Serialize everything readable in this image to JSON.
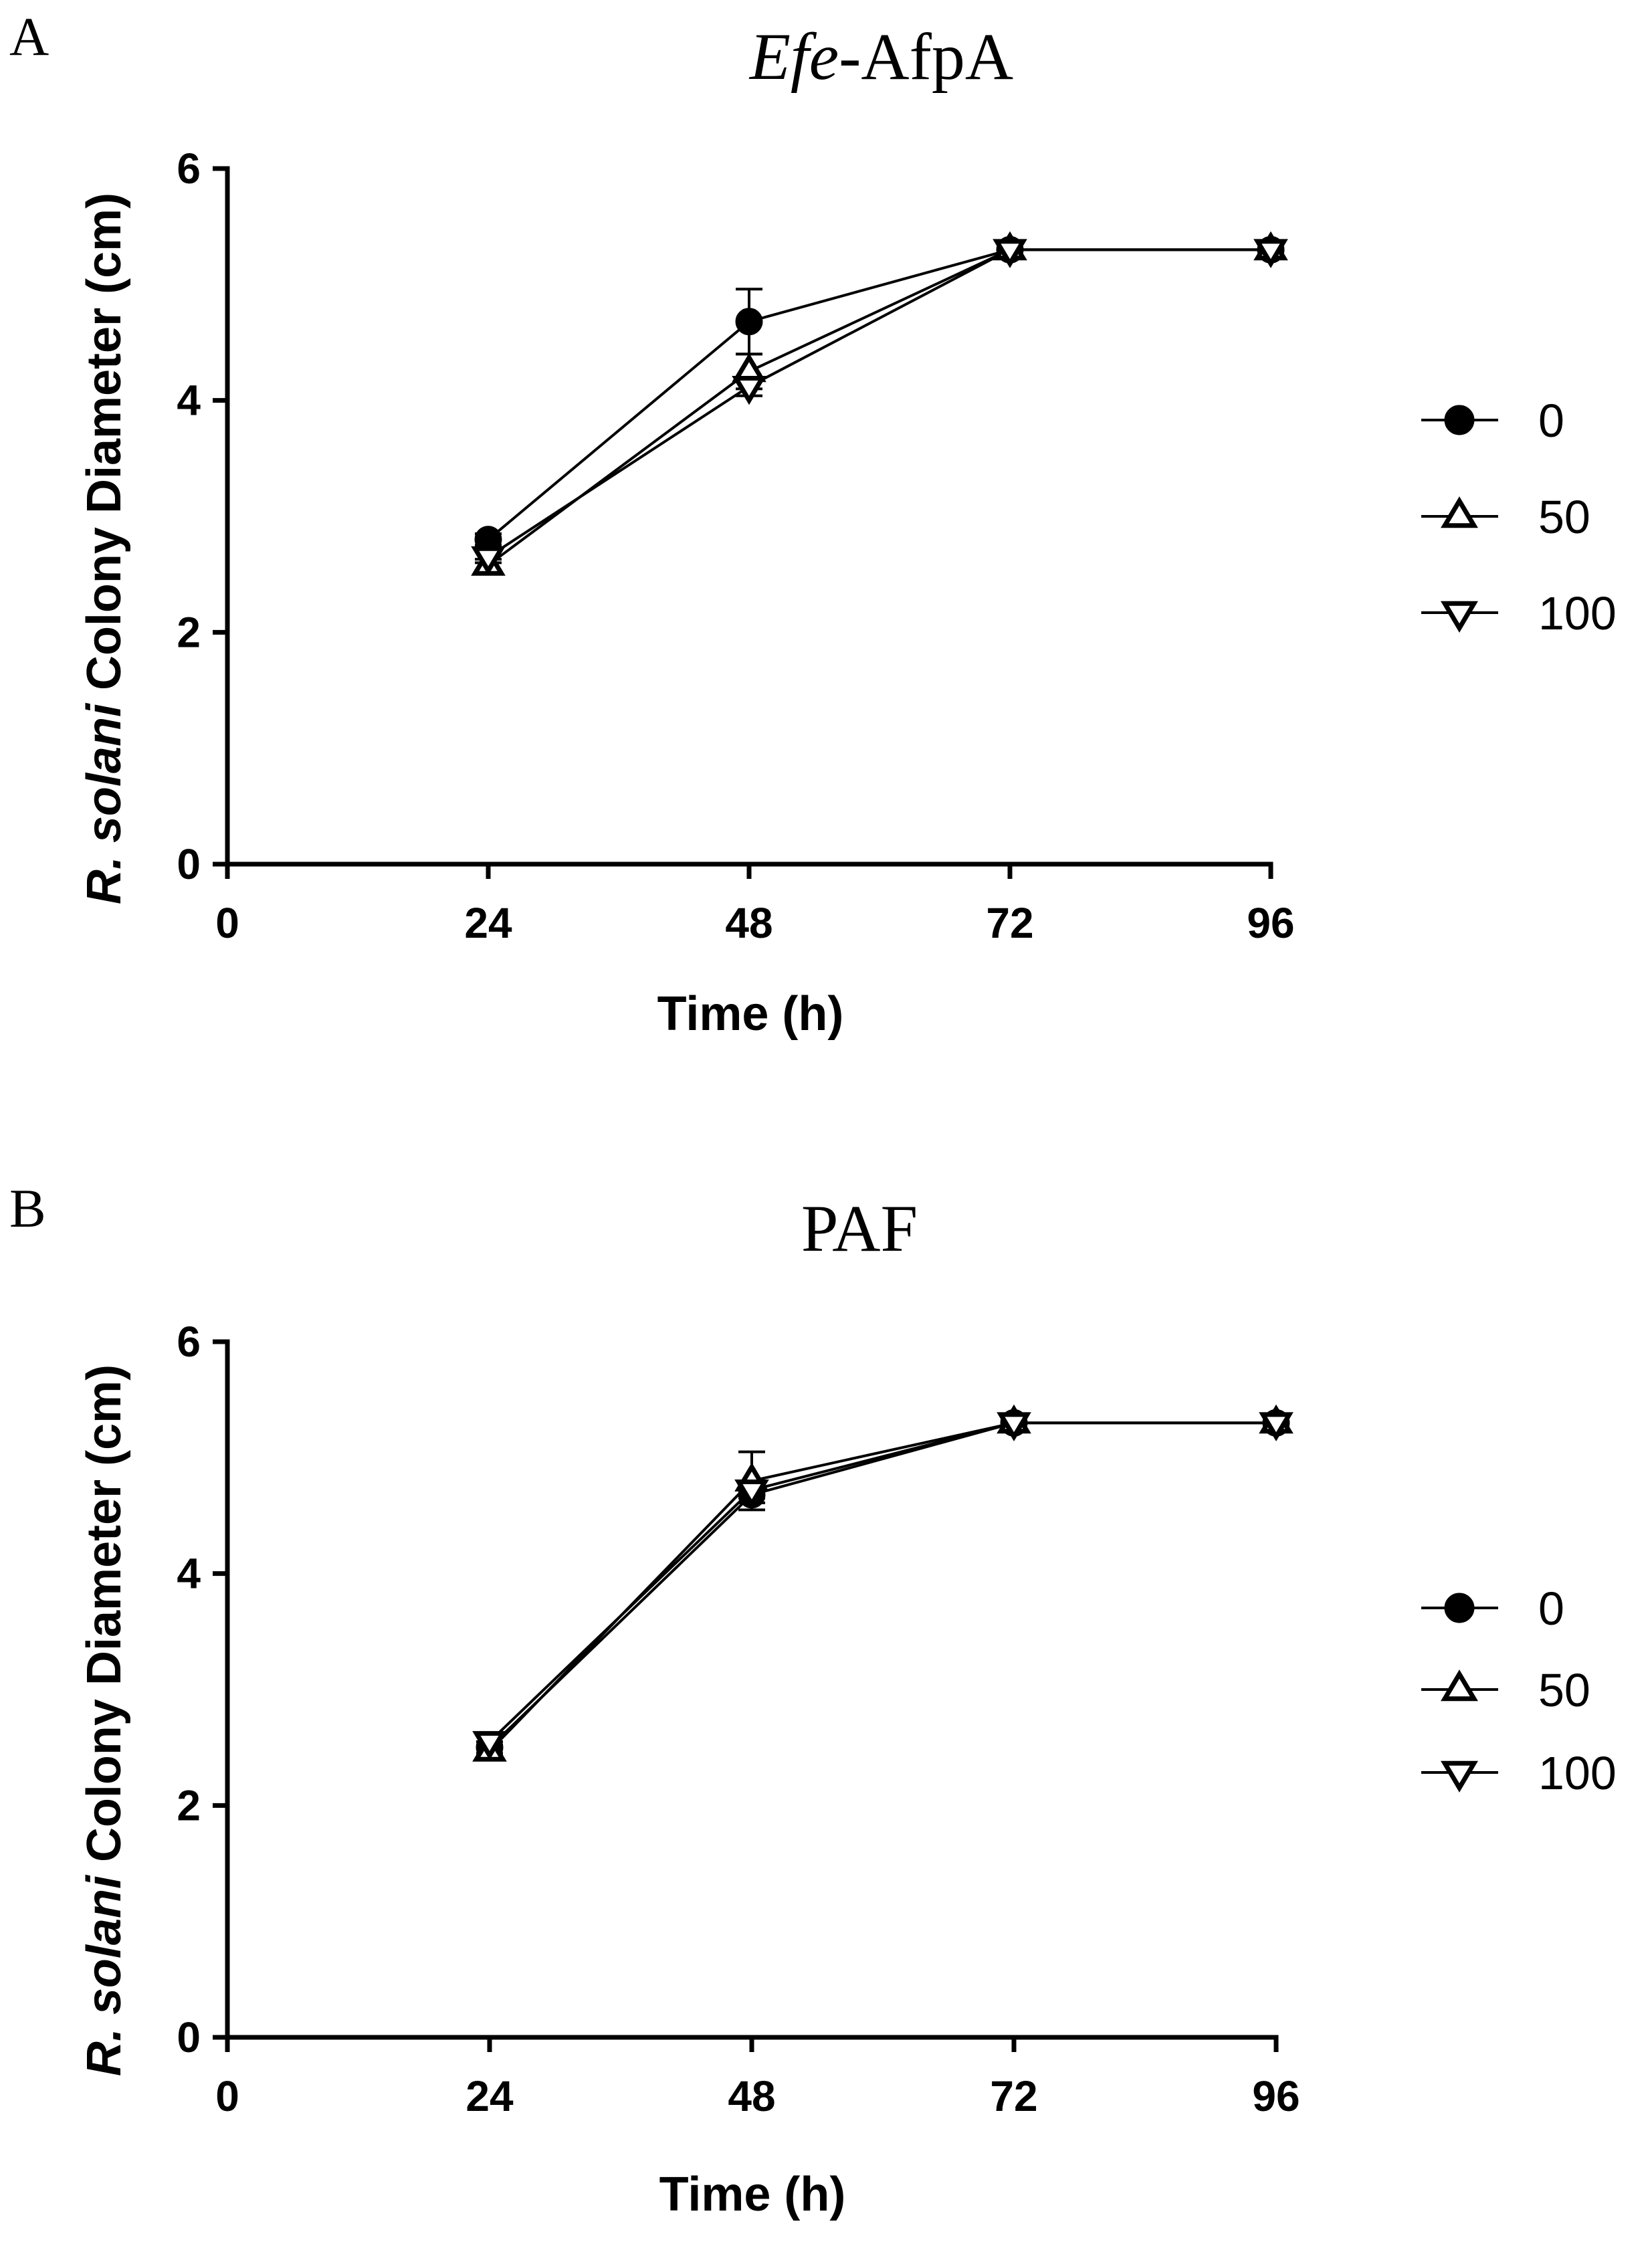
{
  "chart_data": [
    {
      "type": "line",
      "panel": "A",
      "title": "Efe-AfpA",
      "title_italic": "Efe",
      "title_regular": "-AfpA",
      "xlabel": "Time (h)",
      "ylabel_italic": "R. solani",
      "ylabel_regular": " Colony Diameter (cm)",
      "xlim": [
        0,
        96
      ],
      "ylim": [
        0,
        6
      ],
      "xticks": [
        "0",
        "24",
        "48",
        "72",
        "96"
      ],
      "yticks": [
        "0",
        "2",
        "4",
        "6"
      ],
      "x": [
        24,
        48,
        72,
        96
      ],
      "series": [
        {
          "name": "0",
          "marker": "circle",
          "values": [
            2.8,
            4.68,
            5.3,
            5.3
          ],
          "err": [
            0.05,
            0.28,
            0.07,
            0.07
          ]
        },
        {
          "name": "50",
          "marker": "triangle-up",
          "values": [
            2.58,
            4.25,
            5.3,
            5.3
          ],
          "err": [
            0.05,
            0.15,
            0.07,
            0.07
          ]
        },
        {
          "name": "100",
          "marker": "triangle-down",
          "values": [
            2.65,
            4.12,
            5.3,
            5.3
          ],
          "err": [
            0.05,
            0.08,
            0.07,
            0.07
          ]
        }
      ],
      "legend": "right"
    },
    {
      "type": "line",
      "panel": "B",
      "title": "PAF",
      "xlabel": "Time (h)",
      "ylabel_italic": "R. solani",
      "ylabel_regular": " Colony Diameter (cm)",
      "xlim": [
        0,
        96
      ],
      "ylim": [
        0,
        6
      ],
      "xticks": [
        "0",
        "24",
        "48",
        "72",
        "96"
      ],
      "yticks": [
        "0",
        "2",
        "4",
        "6"
      ],
      "x": [
        24,
        48,
        72,
        96
      ],
      "series": [
        {
          "name": "0",
          "marker": "circle",
          "values": [
            2.5,
            4.68,
            5.3,
            5.3
          ],
          "err": [
            0.05,
            0.07,
            0.07,
            0.07
          ]
        },
        {
          "name": "50",
          "marker": "triangle-up",
          "values": [
            2.47,
            4.8,
            5.3,
            5.3
          ],
          "err": [
            0.05,
            0.25,
            0.07,
            0.07
          ]
        },
        {
          "name": "100",
          "marker": "triangle-down",
          "values": [
            2.55,
            4.72,
            5.3,
            5.3
          ],
          "err": [
            0.05,
            0.07,
            0.07,
            0.07
          ]
        }
      ],
      "legend": "right"
    }
  ]
}
